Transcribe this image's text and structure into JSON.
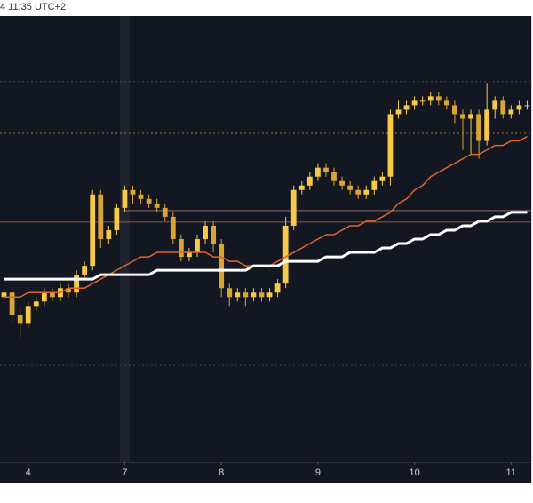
{
  "chart_data": {
    "type": "candlestick",
    "timestamp": "4 11:35 UTC+2",
    "xlim": [
      -0.5,
      65.5
    ],
    "xticks": [
      {
        "value": 3,
        "label": "4"
      },
      {
        "value": 15,
        "label": "7"
      },
      {
        "value": 27,
        "label": "8"
      },
      {
        "value": 39,
        "label": "9"
      },
      {
        "value": 51,
        "label": "10"
      },
      {
        "value": 63,
        "label": "11"
      }
    ],
    "ylim": [
      0,
      100
    ],
    "highlight_x": 15,
    "up_color": "#f7c948",
    "down_color": "#d8a536",
    "open": [
      37,
      38,
      33,
      31,
      35,
      36,
      38,
      37,
      39,
      38,
      42,
      44,
      60,
      50,
      52,
      57,
      61,
      60,
      59,
      58,
      57,
      55,
      50,
      46,
      47,
      50,
      53,
      49,
      39,
      37,
      38,
      37,
      38,
      37,
      38,
      40,
      53,
      61,
      62,
      64,
      66,
      65,
      63,
      62,
      61,
      60,
      61,
      63,
      64,
      78,
      79,
      80,
      81,
      81,
      82,
      81,
      80,
      78,
      77,
      78,
      72,
      79,
      81,
      78,
      79,
      80
    ],
    "high": [
      39,
      39,
      35,
      36,
      37,
      39,
      39,
      40,
      40,
      43,
      45,
      61,
      61,
      53,
      58,
      62,
      62,
      61,
      60,
      59,
      58,
      56,
      51,
      48,
      51,
      54,
      54,
      50,
      40,
      39,
      39,
      39,
      39,
      39,
      41,
      55,
      62,
      63,
      65,
      67,
      67,
      66,
      64,
      63,
      62,
      62,
      64,
      65,
      79,
      81,
      81,
      82,
      82,
      83,
      83,
      82,
      81,
      79,
      79,
      79,
      85,
      82,
      82,
      80,
      81,
      81
    ],
    "low": [
      35,
      31,
      28,
      30,
      34,
      35,
      36,
      36,
      37,
      37,
      41,
      43,
      48,
      49,
      51,
      56,
      58,
      58,
      57,
      56,
      54,
      49,
      45,
      45,
      46,
      49,
      47,
      37,
      35,
      36,
      35,
      36,
      36,
      36,
      37,
      39,
      52,
      60,
      61,
      63,
      64,
      62,
      61,
      60,
      59,
      59,
      60,
      62,
      62,
      77,
      78,
      79,
      80,
      80,
      80,
      79,
      76,
      70,
      69,
      68,
      71,
      77,
      77,
      77,
      78,
      79
    ],
    "close": [
      38,
      33,
      31,
      35,
      36,
      38,
      37,
      39,
      38,
      42,
      44,
      60,
      50,
      52,
      57,
      61,
      60,
      59,
      58,
      57,
      55,
      50,
      46,
      47,
      50,
      53,
      49,
      39,
      37,
      38,
      37,
      38,
      37,
      38,
      40,
      53,
      61,
      62,
      64,
      66,
      65,
      63,
      62,
      61,
      60,
      61,
      63,
      64,
      78,
      79,
      80,
      81,
      81,
      82,
      81,
      80,
      78,
      77,
      78,
      72,
      79,
      81,
      78,
      79,
      80,
      80
    ],
    "moving_averages": [
      {
        "color": "#e0642a",
        "width": 1.5,
        "values": [
          37,
          37,
          37,
          38,
          38,
          38,
          38,
          38,
          39,
          39,
          39,
          40,
          41,
          42,
          43,
          44,
          45,
          46,
          46,
          47,
          47,
          47,
          47,
          47,
          47,
          47,
          46,
          46,
          45,
          45,
          44,
          44,
          44,
          44,
          45,
          46,
          47,
          48,
          49,
          50,
          51,
          51,
          52,
          53,
          53,
          54,
          54,
          55,
          56,
          58,
          59,
          61,
          62,
          64,
          65,
          66,
          67,
          68,
          69,
          69,
          70,
          71,
          71,
          72,
          72,
          73
        ]
      },
      {
        "color": "#ffffff",
        "width": 3,
        "values": [
          41,
          41,
          41,
          41,
          41,
          41,
          41,
          41,
          41,
          41,
          41,
          41,
          42,
          42,
          42,
          42,
          42,
          42,
          42,
          43,
          43,
          43,
          43,
          43,
          43,
          43,
          43,
          43,
          43,
          43,
          43,
          44,
          44,
          44,
          44,
          45,
          45,
          45,
          45,
          45,
          46,
          46,
          46,
          47,
          47,
          47,
          47,
          48,
          48,
          49,
          49,
          50,
          50,
          51,
          51,
          52,
          52,
          53,
          53,
          54,
          54,
          55,
          55,
          56,
          56,
          56
        ]
      }
    ],
    "levels": [
      {
        "value": 85.3,
        "color": "#4a4f5c",
        "dash": "2 3",
        "from": -0.5
      },
      {
        "value": 73.7,
        "color": "#a0722a",
        "dash": "2 3",
        "from": -0.5
      },
      {
        "value": 56.4,
        "color": "#8a6a72",
        "dash": "",
        "from": 15
      },
      {
        "value": 53.8,
        "color": "#8a5a4a",
        "dash": "",
        "from": -0.5
      },
      {
        "value": 21.7,
        "color": "#3e4350",
        "dash": "2 3",
        "from": -0.5
      }
    ]
  }
}
